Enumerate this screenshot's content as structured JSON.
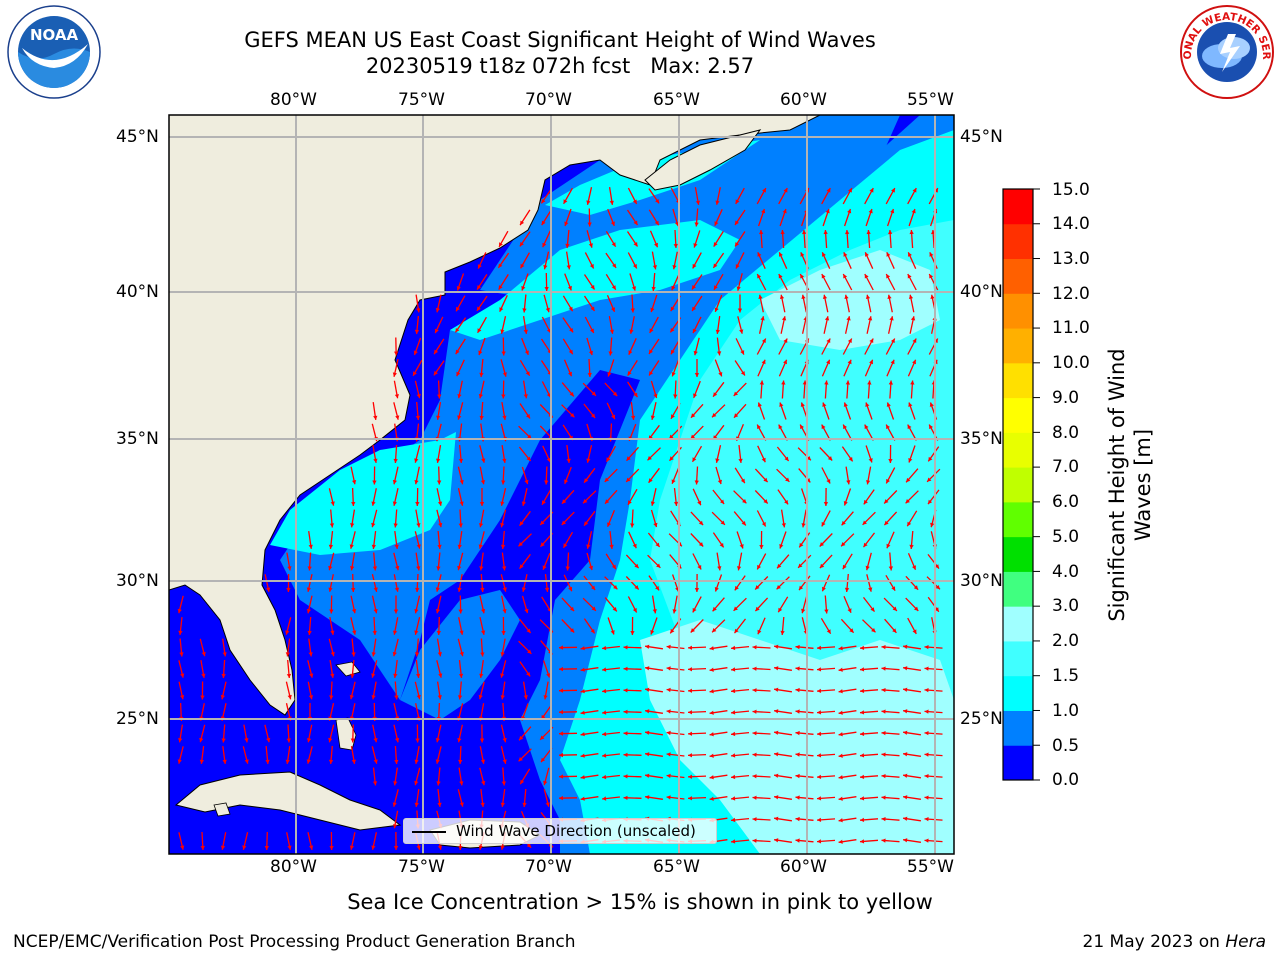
{
  "title": {
    "line1": "GEFS MEAN US East Coast Significant Height of Wind Waves",
    "line2": "20230519 t18z 072h fcst   Max: 2.57"
  },
  "map": {
    "lon_labels": [
      "80°W",
      "75°W",
      "70°W",
      "65°W",
      "60°W",
      "55°W"
    ],
    "lat_labels": [
      "45°N",
      "40°N",
      "35°N",
      "30°N",
      "25°N"
    ],
    "lon_range": [
      -85,
      -54.3
    ],
    "lat_range": [
      20.5,
      46
    ],
    "colors": {
      "land": "#efedde",
      "grid": "#b4b4b4",
      "arrow": "#ff0000"
    }
  },
  "legend": {
    "label": "Wind Wave Direction (unscaled)"
  },
  "colorbar": {
    "title": "Significant Height of Wind Waves [m]",
    "tick_labels": [
      "0.0",
      "0.5",
      "1.0",
      "1.5",
      "2.0",
      "3.0",
      "4.0",
      "5.0",
      "6.0",
      "7.0",
      "8.0",
      "9.0",
      "10.0",
      "11.0",
      "12.0",
      "13.0",
      "14.0",
      "15.0"
    ],
    "colors": [
      "#0000ff",
      "#0080ff",
      "#00ffff",
      "#40ffff",
      "#a0ffff",
      "#40ff80",
      "#00e000",
      "#60ff00",
      "#c0ff00",
      "#e8ff00",
      "#ffff00",
      "#ffe000",
      "#ffb000",
      "#ff9000",
      "#ff6000",
      "#ff3000",
      "#ff0000"
    ]
  },
  "subtitle": "Sea Ice Concentration > 15% is shown in pink to yellow",
  "footer": {
    "left": "NCEP/EMC/Verification Post Processing Product Generation Branch",
    "date": "21 May 2023 on ",
    "host": "Hera"
  },
  "logos": {
    "noaa": "NOAA",
    "nws": "NATIONAL WEATHER SERVICE"
  }
}
